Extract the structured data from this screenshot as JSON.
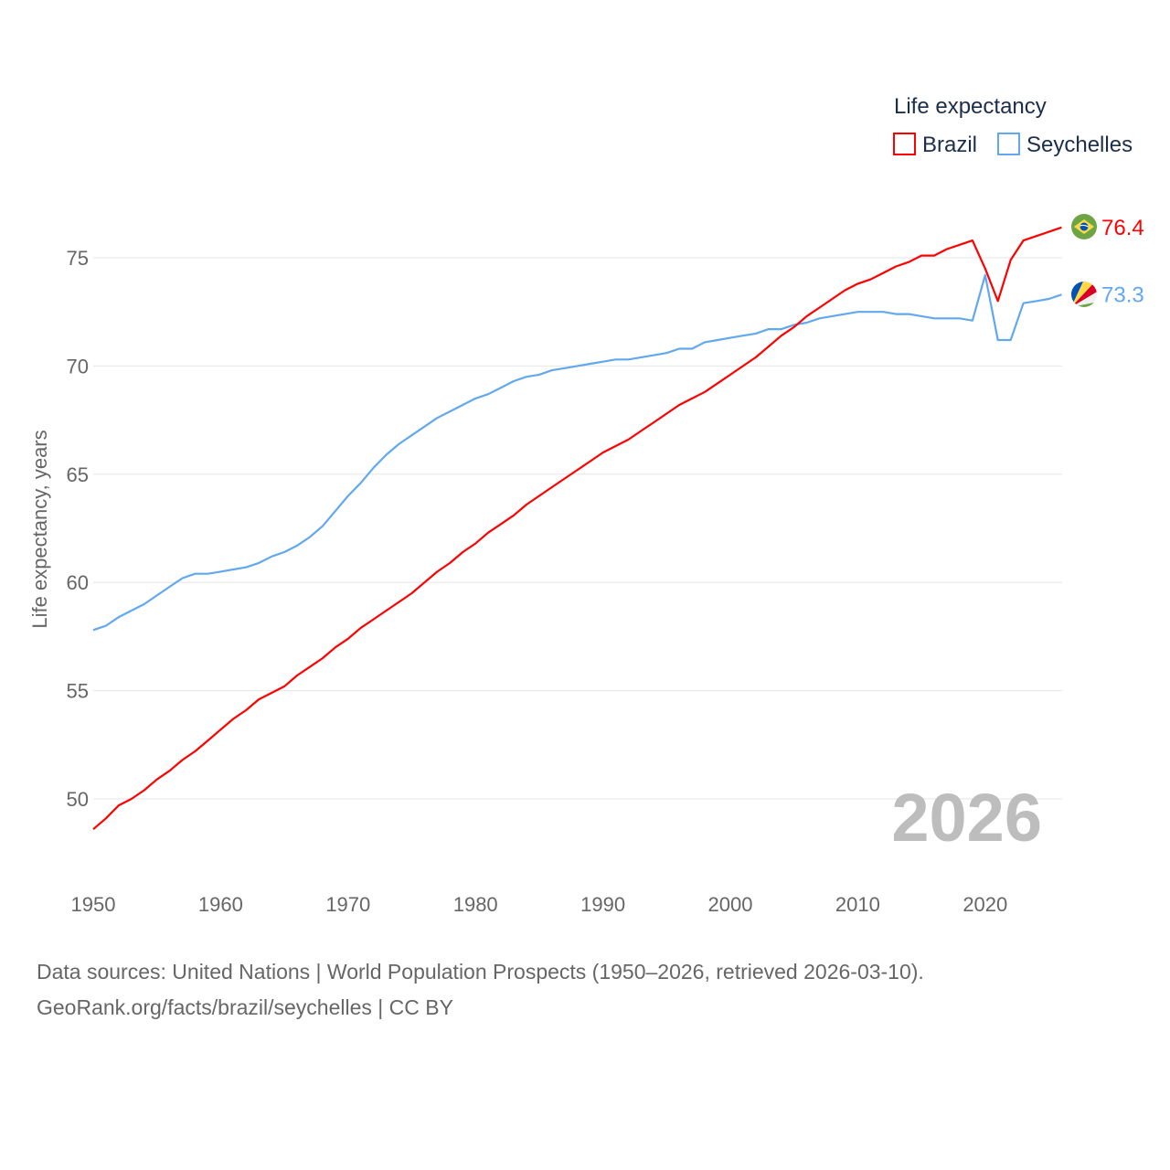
{
  "chart_data": {
    "type": "line",
    "title": "",
    "legend_title": "Life expectancy",
    "legend_position": "top-right",
    "xlabel": "",
    "ylabel": "Life expectancy, years",
    "xlim": [
      1950,
      2026
    ],
    "ylim": [
      46.5,
      80
    ],
    "grid": true,
    "x_ticks": [
      "1950",
      "1960",
      "1970",
      "1980",
      "1990",
      "2000",
      "2010",
      "2020"
    ],
    "y_ticks": [
      "50",
      "55",
      "60",
      "65",
      "70",
      "75"
    ],
    "year_watermark": "2026",
    "x": [
      1950,
      1951,
      1952,
      1953,
      1954,
      1955,
      1956,
      1957,
      1958,
      1959,
      1960,
      1961,
      1962,
      1963,
      1964,
      1965,
      1966,
      1967,
      1968,
      1969,
      1970,
      1971,
      1972,
      1973,
      1974,
      1975,
      1976,
      1977,
      1978,
      1979,
      1980,
      1981,
      1982,
      1983,
      1984,
      1985,
      1986,
      1987,
      1988,
      1989,
      1990,
      1991,
      1992,
      1993,
      1994,
      1995,
      1996,
      1997,
      1998,
      1999,
      2000,
      2001,
      2002,
      2003,
      2004,
      2005,
      2006,
      2007,
      2008,
      2009,
      2010,
      2011,
      2012,
      2013,
      2014,
      2015,
      2016,
      2017,
      2018,
      2019,
      2020,
      2021,
      2022,
      2023,
      2024,
      2025,
      2026
    ],
    "series": [
      {
        "name": "Brazil",
        "color": "#ff0000",
        "end_label": "76.4",
        "flag": "brazil-flag",
        "values": [
          48.6,
          49.1,
          49.7,
          50.0,
          50.4,
          50.9,
          51.3,
          51.8,
          52.2,
          52.7,
          53.2,
          53.7,
          54.1,
          54.6,
          54.9,
          55.2,
          55.7,
          56.1,
          56.5,
          57.0,
          57.4,
          57.9,
          58.3,
          58.7,
          59.1,
          59.5,
          60.0,
          60.5,
          60.9,
          61.4,
          61.8,
          62.3,
          62.7,
          63.1,
          63.6,
          64.0,
          64.4,
          64.8,
          65.2,
          65.6,
          66.0,
          66.3,
          66.6,
          67.0,
          67.4,
          67.8,
          68.2,
          68.5,
          68.8,
          69.2,
          69.6,
          70.0,
          70.4,
          70.9,
          71.4,
          71.8,
          72.3,
          72.7,
          73.1,
          73.5,
          73.8,
          74.0,
          74.3,
          74.6,
          74.8,
          75.1,
          75.1,
          75.4,
          75.6,
          75.8,
          74.5,
          73.0,
          74.9,
          75.8,
          76.0,
          76.2,
          76.4
        ]
      },
      {
        "name": "Seychelles",
        "color": "#62a8ef",
        "end_label": "73.3",
        "flag": "seychelles-flag",
        "values": [
          57.8,
          58.0,
          58.4,
          58.7,
          59.0,
          59.4,
          59.8,
          60.2,
          60.4,
          60.4,
          60.5,
          60.6,
          60.7,
          60.9,
          61.2,
          61.4,
          61.7,
          62.1,
          62.6,
          63.3,
          64.0,
          64.6,
          65.3,
          65.9,
          66.4,
          66.8,
          67.2,
          67.6,
          67.9,
          68.2,
          68.5,
          68.7,
          69.0,
          69.3,
          69.5,
          69.6,
          69.8,
          69.9,
          70.0,
          70.1,
          70.2,
          70.3,
          70.3,
          70.4,
          70.5,
          70.6,
          70.8,
          70.8,
          71.1,
          71.2,
          71.3,
          71.4,
          71.5,
          71.7,
          71.7,
          71.9,
          72.0,
          72.2,
          72.3,
          72.4,
          72.5,
          72.5,
          72.5,
          72.4,
          72.4,
          72.3,
          72.2,
          72.2,
          72.2,
          72.1,
          74.2,
          71.2,
          71.2,
          72.9,
          73.0,
          73.1,
          73.3
        ]
      }
    ]
  },
  "footer": {
    "source": "Data sources: United Nations | World Population Prospects (1950–2026, retrieved 2026-03-10).",
    "link": "GeoRank.org/facts/brazil/seychelles | CC BY"
  }
}
